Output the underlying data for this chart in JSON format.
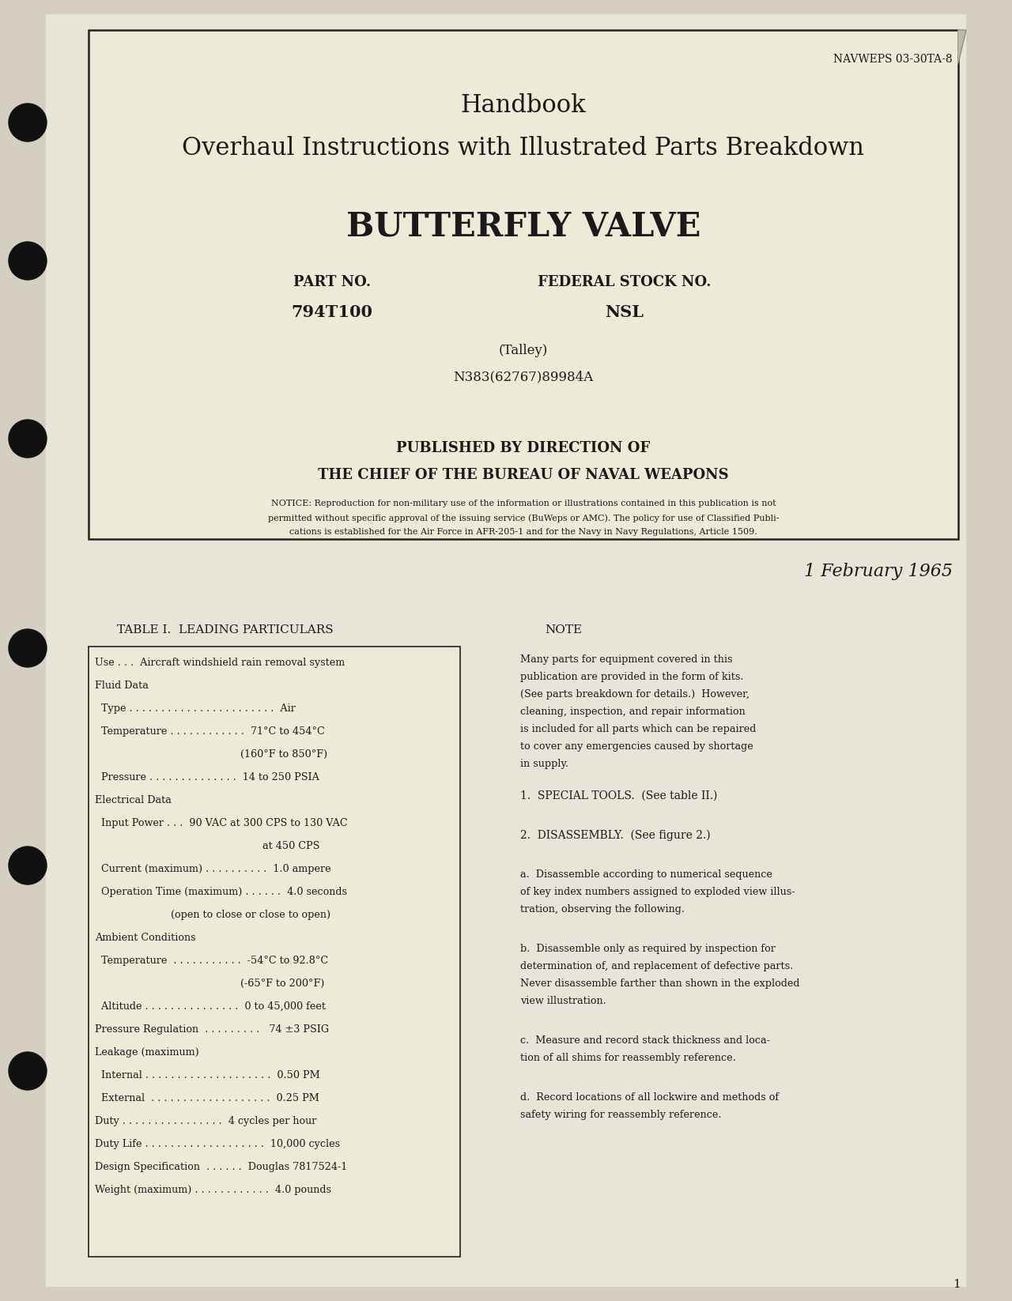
{
  "bg_color": "#d4cfc0",
  "page_bg": "#e8e4d8",
  "inner_bg": "#f0ece0",
  "text_color": "#1a1a1a",
  "navweps": "NAVWEPS 03-30TA-8",
  "title1": "Handbook",
  "title2": "Overhaul Instructions with Illustrated Parts Breakdown",
  "title3": "BUTTERFLY VALVE",
  "part_label": "PART NO.",
  "part_no": "794T100",
  "stock_label": "FEDERAL STOCK NO.",
  "stock_no": "NSL",
  "talley": "(Talley)",
  "contract": "N383(62767)89984A",
  "published1": "PUBLISHED BY DIRECTION OF",
  "published2": "THE CHIEF OF THE BUREAU OF NAVAL WEAPONS",
  "notice_line1": "NOTICE: Reproduction for non-military use of the information or illustrations contained in this publication is not",
  "notice_line2": "permitted without specific approval of the issuing service (BuWeps or AMC). The policy for use of Classified Publi-",
  "notice_line3": "cations is established for the Air Force in AFR-205-1 and for the Navy in Navy Regulations, Article 1509.",
  "date": "1 February 1965",
  "table_title": "TABLE I.  LEADING PARTICULARS",
  "table_lines": [
    "Use . . .  Aircraft windshield rain removal system",
    "Fluid Data",
    "  Type . . . . . . . . . . . . . . . . . . . . . . .  Air",
    "  Temperature . . . . . . . . . . . .  71°C to 454°C",
    "                                              (160°F to 850°F)",
    "  Pressure . . . . . . . . . . . . . .  14 to 250 PSIA",
    "Electrical Data",
    "  Input Power . . .  90 VAC at 300 CPS to 130 VAC",
    "                                                     at 450 CPS",
    "  Current (maximum) . . . . . . . . . .  1.0 ampere",
    "  Operation Time (maximum) . . . . . .  4.0 seconds",
    "                        (open to close or close to open)",
    "Ambient Conditions",
    "  Temperature  . . . . . . . . . . .  -54°C to 92.8°C",
    "                                              (-65°F to 200°F)",
    "  Altitude . . . . . . . . . . . . . . .  0 to 45,000 feet",
    "Pressure Regulation  . . . . . . . . .   74 ±3 PSIG",
    "Leakage (maximum)",
    "  Internal . . . . . . . . . . . . . . . . . . . .  0.50 PM",
    "  External  . . . . . . . . . . . . . . . . . . .  0.25 PM",
    "Duty . . . . . . . . . . . . . . . .  4 cycles per hour",
    "Duty Life . . . . . . . . . . . . . . . . . . .  10,000 cycles",
    "Design Specification  . . . . . .  Douglas 7817524-1",
    "Weight (maximum) . . . . . . . . . . . .  4.0 pounds"
  ],
  "note_title": "NOTE",
  "note_lines": [
    "Many parts for equipment covered in this",
    "publication are provided in the form of kits.",
    "(See parts breakdown for details.)  However,",
    "cleaning, inspection, and repair information",
    "is included for all parts which can be repaired",
    "to cover any emergencies caused by shortage",
    "in supply."
  ],
  "section1": "1.  SPECIAL TOOLS.  (See table II.)",
  "section2": "2.  DISASSEMBLY.  (See figure 2.)",
  "para_a_lines": [
    "a.  Disassemble according to numerical sequence",
    "of key index numbers assigned to exploded view illus-",
    "tration, observing the following."
  ],
  "para_b_lines": [
    "b.  Disassemble only as required by inspection for",
    "determination of, and replacement of defective parts.",
    "Never disassemble farther than shown in the exploded",
    "view illustration."
  ],
  "para_c_lines": [
    "c.  Measure and record stack thickness and loca-",
    "tion of all shims for reassembly reference."
  ],
  "para_d_lines": [
    "d.  Record locations of all lockwire and methods of",
    "safety wiring for reassembly reference."
  ],
  "page_num": "1"
}
